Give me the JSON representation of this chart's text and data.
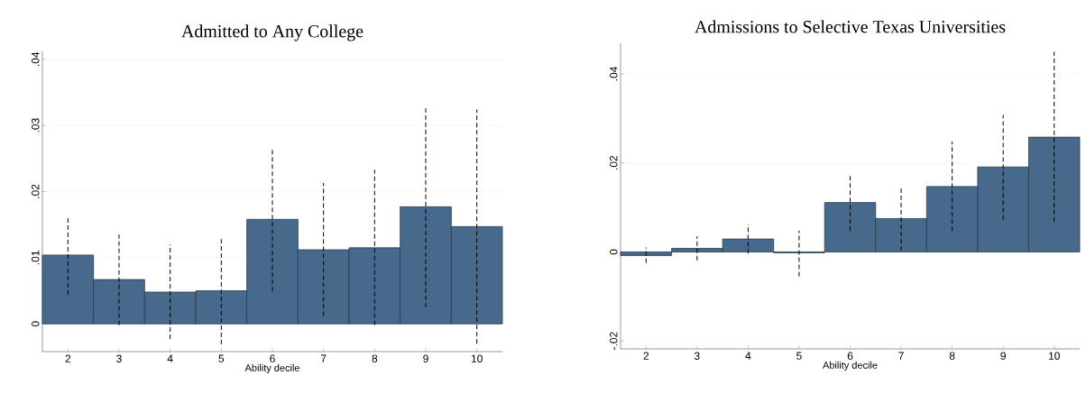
{
  "chart_data": [
    {
      "type": "bar",
      "title": "Admitted to Any College",
      "xlabel": "Ability decile",
      "x": [
        2,
        3,
        4,
        5,
        6,
        7,
        8,
        9,
        10
      ],
      "values": [
        0.0104,
        0.0067,
        0.0048,
        0.005,
        0.0158,
        0.0112,
        0.0115,
        0.0177,
        0.0147
      ],
      "errors": [
        [
          0.0044,
          0.0164
        ],
        [
          -0.0002,
          0.0135
        ],
        [
          -0.0023,
          0.012
        ],
        [
          -0.0031,
          0.0128
        ],
        [
          0.0049,
          0.0265
        ],
        [
          0.0012,
          0.0213
        ],
        [
          -0.0002,
          0.0233
        ],
        [
          0.0025,
          0.0326
        ],
        [
          -0.003,
          0.0324
        ]
      ],
      "color": "#476a8c",
      "xlim": [
        1.5,
        10.5
      ],
      "ylim": [
        -0.0042,
        0.0412
      ],
      "xticks": [
        2,
        3,
        4,
        5,
        6,
        7,
        8,
        9,
        10
      ],
      "yticks": [
        0,
        {
          "value": 0.01,
          "label": ".01"
        },
        {
          "value": 0.02,
          "label": ".02"
        },
        {
          "value": 0.03,
          "label": ".03"
        },
        {
          "value": 0.04,
          "label": ".04"
        }
      ],
      "grid": "y"
    },
    {
      "type": "bar",
      "title": "Admissions to Selective Texas Universities",
      "xlabel": "Ability decile",
      "x": [
        2,
        3,
        4,
        5,
        6,
        7,
        8,
        9,
        10
      ],
      "values": [
        -0.0008,
        0.0008,
        0.0029,
        -0.0002,
        0.0111,
        0.0075,
        0.0147,
        0.0191,
        0.0258
      ],
      "errors": [
        [
          -0.0025,
          0.001
        ],
        [
          -0.0019,
          0.0035
        ],
        [
          -0.0004,
          0.0062
        ],
        [
          -0.0055,
          0.0048
        ],
        [
          0.0047,
          0.0174
        ],
        [
          0.0003,
          0.0144
        ],
        [
          0.0047,
          0.0248
        ],
        [
          0.0073,
          0.0308
        ],
        [
          0.0068,
          0.045
        ]
      ],
      "color": "#476a8c",
      "xlim": [
        1.5,
        10.5
      ],
      "ylim": [
        -0.0218,
        0.0469
      ],
      "xticks": [
        2,
        3,
        4,
        5,
        6,
        7,
        8,
        9,
        10
      ],
      "yticks": [
        {
          "value": -0.02,
          "label": "-.02"
        },
        0,
        {
          "value": 0.02,
          "label": ".02"
        },
        {
          "value": 0.04,
          "label": ".04"
        }
      ],
      "grid": "y"
    }
  ]
}
